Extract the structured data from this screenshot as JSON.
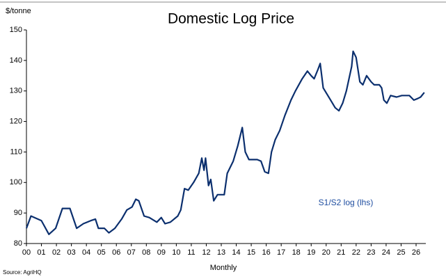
{
  "chart_data": {
    "type": "line",
    "title": "Domestic Log Price",
    "y_label": "$/tonne",
    "x_label": "Monthly",
    "source": "Source: AgriHQ",
    "annotation": "S1/S2 log (lhs)",
    "x": [
      0,
      0.3,
      1.0,
      1.5,
      1.95,
      2.4,
      2.9,
      3.35,
      3.8,
      4.3,
      4.6,
      4.8,
      5.2,
      5.5,
      5.9,
      6.35,
      6.7,
      7.05,
      7.3,
      7.5,
      7.85,
      8.2,
      8.7,
      9.0,
      9.25,
      9.6,
      10.1,
      10.3,
      10.55,
      10.8,
      11.15,
      11.5,
      11.7,
      11.85,
      11.95,
      12.15,
      12.3,
      12.5,
      12.75,
      13.2,
      13.4,
      13.8,
      14.1,
      14.4,
      14.6,
      14.85,
      15.4,
      15.65,
      15.9,
      16.15,
      16.35,
      16.6,
      16.9,
      17.25,
      17.65,
      17.95,
      18.4,
      18.75,
      19.0,
      19.2,
      19.45,
      19.6,
      19.8,
      20.3,
      20.6,
      20.85,
      21.1,
      21.35,
      21.7,
      21.8,
      22.0,
      22.25,
      22.45,
      22.7,
      23.0,
      23.2,
      23.55,
      23.7,
      23.85,
      24.05,
      24.3,
      24.7,
      25.05,
      25.55,
      25.85,
      26.1,
      26.3,
      26.55
    ],
    "series": [
      {
        "name": "S1/S2 log",
        "color": "#0b2f6e",
        "values": [
          85,
          89,
          87.5,
          83,
          85,
          91.5,
          91.5,
          85,
          86.5,
          87.5,
          88,
          85,
          85,
          83.5,
          85,
          88,
          91,
          92,
          94.5,
          94,
          89,
          88.5,
          87,
          88.5,
          86.5,
          87,
          89,
          91,
          98,
          97.5,
          100,
          103,
          108,
          104,
          108,
          99,
          101,
          94,
          96,
          96,
          103,
          107,
          112,
          118,
          110,
          107.5,
          107.5,
          107,
          103.5,
          103,
          110,
          114,
          117,
          122,
          127,
          130,
          134,
          136.5,
          135,
          134,
          137,
          139,
          131,
          127,
          124.5,
          123.5,
          126,
          130,
          138,
          143,
          141,
          133,
          132,
          135,
          133,
          132,
          132,
          131,
          127,
          126,
          128.5,
          128,
          128.5,
          128.5,
          127,
          127.5,
          128,
          129.5
        ]
      }
    ],
    "xlim": [
      0,
      26.65
    ],
    "xticks": [
      {
        "value": 0,
        "label": "00"
      },
      {
        "value": 1,
        "label": "01"
      },
      {
        "value": 2,
        "label": "02"
      },
      {
        "value": 3,
        "label": "03"
      },
      {
        "value": 4,
        "label": "04"
      },
      {
        "value": 5,
        "label": "05"
      },
      {
        "value": 6,
        "label": "06"
      },
      {
        "value": 7,
        "label": "07"
      },
      {
        "value": 8,
        "label": "08"
      },
      {
        "value": 9,
        "label": "09"
      },
      10,
      11,
      12,
      13,
      14,
      15,
      16,
      17,
      18,
      19,
      20,
      21,
      22,
      23,
      24,
      25,
      26
    ],
    "ylim": [
      80,
      150
    ],
    "yticks": [
      80,
      90,
      100,
      110,
      120,
      130,
      140,
      150
    ]
  }
}
